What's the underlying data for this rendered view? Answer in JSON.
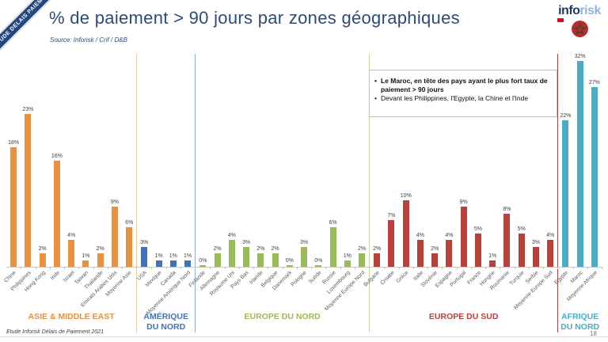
{
  "ribbon": "ETUDE DELAIS PAIEMENT",
  "header": {
    "title": "% de paiement > 90 jours par zones géographiques",
    "source": "Source: Inforisk / Crif / D&B"
  },
  "logo": {
    "part1": "info",
    "part2": "risk"
  },
  "annotation": {
    "bullet1": "Le Maroc, en tête des pays ayant le plus fort taux de paiement > 90 jours",
    "bullet2": "Devant les Philippines, l'Egypte, la Chine et l'Inde"
  },
  "footer": {
    "left": "Etude Inforisk Délais de Paiement 2021",
    "page": "18"
  },
  "chart_data": {
    "type": "bar",
    "title": "% de paiement > 90 jours par zones géographiques",
    "unit": "%",
    "ylim": [
      0,
      32
    ],
    "value_labels": true,
    "grid": false,
    "highlight": {
      "category": "Maroc",
      "marker": "morocco-flag",
      "flag_red": "#C1272D",
      "flag_green": "#006233"
    },
    "groups": [
      {
        "label": "ASIE & MIDDLE EAST",
        "color": "#E8913F",
        "separator_color": "#F2CA9E",
        "categories": [
          "Chine",
          "Philippines",
          "Hong Kong",
          "Inde",
          "Israel",
          "Taiwan",
          "Thailande",
          "Emirats Arabes Unis",
          "Moyenne Asie"
        ],
        "values": [
          18,
          23,
          2,
          16,
          4,
          1,
          2,
          9,
          6
        ]
      },
      {
        "label": "AMÉRIQUE DU NORD",
        "color": "#4472B8",
        "separator_color": "#8FAED2",
        "categories": [
          "USA",
          "Mexique",
          "Canada",
          "Moyenne Amérique Nord"
        ],
        "values": [
          3,
          1,
          1,
          1
        ]
      },
      {
        "label": "EUROPE DU NORD",
        "color": "#9BBB59",
        "separator_color": "#C8D9A2",
        "categories": [
          "Finlande",
          "Allemagne",
          "Royaume Uni",
          "Pays Bas",
          "Irlande",
          "Belgique",
          "Danemark",
          "Pologne",
          "Suède",
          "Russie",
          "Luxembourg",
          "Moyenne Europe Nord"
        ],
        "values": [
          0,
          2,
          4,
          3,
          2,
          2,
          0,
          3,
          0,
          6,
          1,
          2
        ]
      },
      {
        "label": "EUROPE DU SUD",
        "color": "#B9413C",
        "separator_color": "#9C4A45",
        "categories": [
          "Bulgarie",
          "Croatie",
          "Grèce",
          "Italie",
          "Slovénie",
          "Espagne",
          "Portugal",
          "France",
          "Hongrie",
          "Roumanie",
          "Turquie",
          "Serbie",
          "Moyenne Europe Sud"
        ],
        "values": [
          2,
          7,
          10,
          4,
          2,
          4,
          9,
          5,
          1,
          8,
          5,
          3,
          4
        ]
      },
      {
        "label": "AFRIQUE DU NORD",
        "color": "#4BACC6",
        "separator_color": null,
        "categories": [
          "Egypte",
          "Maroc",
          "Moyenne Afrique"
        ],
        "values": [
          22,
          32,
          27
        ]
      }
    ]
  }
}
